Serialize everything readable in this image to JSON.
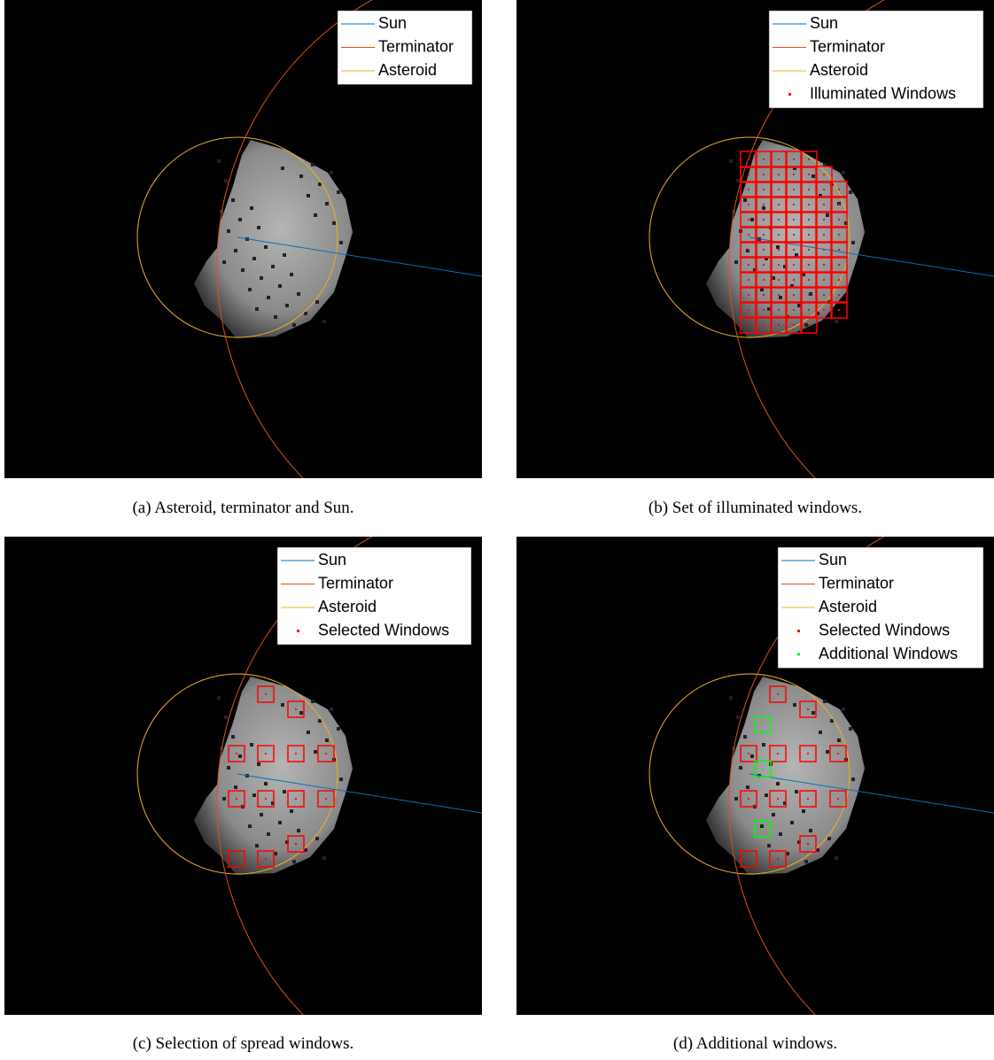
{
  "panels": [
    {
      "caption": "(a) Asteroid, terminator and Sun.",
      "legend": [
        {
          "label": "Sun",
          "color": "#0072bd",
          "marker": "line"
        },
        {
          "label": "Terminator",
          "color": "#d95319",
          "marker": "line"
        },
        {
          "label": "Asteroid",
          "color": "#edb120",
          "marker": "line"
        }
      ]
    },
    {
      "caption": "(b) Set of illuminated windows.",
      "legend": [
        {
          "label": "Sun",
          "color": "#0072bd",
          "marker": "line"
        },
        {
          "label": "Terminator",
          "color": "#d95319",
          "marker": "line"
        },
        {
          "label": "Asteroid",
          "color": "#edb120",
          "marker": "line"
        },
        {
          "label": "Illuminated Windows",
          "color": "#ff0000",
          "marker": "dot"
        }
      ]
    },
    {
      "caption": "(c) Selection of spread windows.",
      "legend": [
        {
          "label": "Sun",
          "color": "#0072bd",
          "marker": "line"
        },
        {
          "label": "Terminator",
          "color": "#d95319",
          "marker": "line"
        },
        {
          "label": "Asteroid",
          "color": "#edb120",
          "marker": "line"
        },
        {
          "label": "Selected Windows",
          "color": "#ff0000",
          "marker": "dot"
        }
      ]
    },
    {
      "caption": "(d) Additional windows.",
      "legend": [
        {
          "label": "Sun",
          "color": "#0072bd",
          "marker": "line"
        },
        {
          "label": "Terminator",
          "color": "#d95319",
          "marker": "line"
        },
        {
          "label": "Asteroid",
          "color": "#edb120",
          "marker": "line"
        },
        {
          "label": "Selected Windows",
          "color": "#ff0000",
          "marker": "dot"
        },
        {
          "label": "Additional Windows",
          "color": "#00ff00",
          "marker": "dot"
        }
      ]
    }
  ]
}
